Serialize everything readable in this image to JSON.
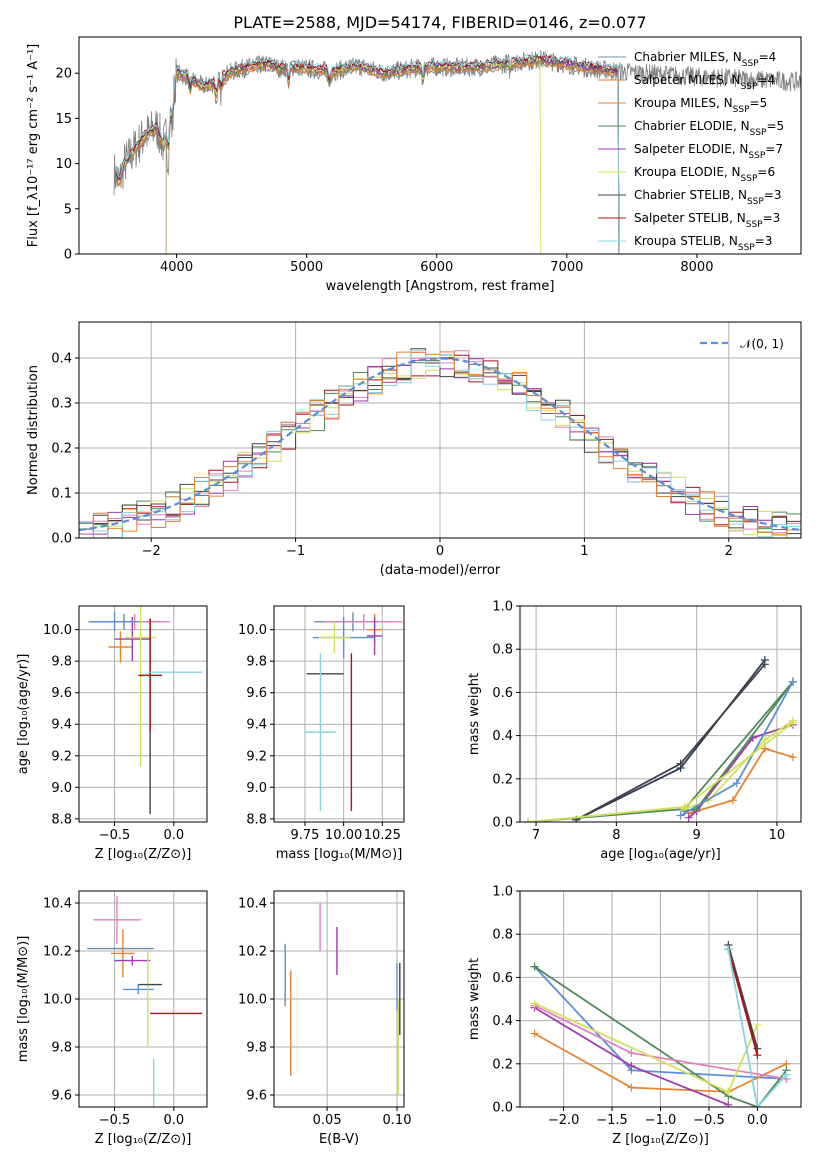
{
  "figure": {
    "title": "PLATE=2588, MJD=54174, FIBERID=0146, z=0.077"
  },
  "colors": {
    "models": [
      "#6b8ca8",
      "#e07b2a",
      "#e8842d",
      "#4f8a5a",
      "#a33ab0",
      "#d4e05a",
      "#444444",
      "#b0121b",
      "#86d4e2"
    ],
    "gray": "#7f7f7f",
    "gauss": "#5b8fd8",
    "grid": "#b0b0b0",
    "series6": [
      "#5b8fd8",
      "#e8842d",
      "#4f8a5a",
      "#a33ab0",
      "#e27fc0",
      "#d4e05a"
    ]
  },
  "chart_data": [
    {
      "id": "spectrum",
      "type": "line",
      "xlabel": "wavelength [Angstrom, rest frame]",
      "ylabel": "Flux [f_λ10⁻¹⁷ erg cm⁻² s⁻¹ A⁻¹]",
      "xlim": [
        3250,
        8800
      ],
      "ylim": [
        0,
        24
      ],
      "xticks": [
        4000,
        5000,
        6000,
        7000,
        8000
      ],
      "yticks": [
        0,
        5,
        10,
        15,
        20
      ],
      "grid": false,
      "legend_position": "right",
      "legend": [
        "Chabrier MILES, N_SSP=4",
        "Salpeter MILES, N_SSP=4",
        "Kroupa MILES, N_SSP=5",
        "Chabrier ELODIE, N_SSP=5",
        "Salpeter ELODIE, N_SSP=7",
        "Kroupa ELODIE, N_SSP=6",
        "Chabrier STELIB, N_SSP=3",
        "Salpeter STELIB, N_SSP=3",
        "Kroupa STELIB, N_SSP=3"
      ],
      "data_x": [
        3520,
        3560,
        3600,
        3650,
        3700,
        3750,
        3800,
        3850,
        3900,
        3950,
        4000,
        4100,
        4200,
        4300,
        4400,
        4500,
        4600,
        4700,
        4800,
        4900,
        5000,
        5200,
        5400,
        5600,
        5800,
        6000,
        6200,
        6400,
        6600,
        6800,
        7000,
        7200,
        7400,
        7600,
        7800,
        8000,
        8200,
        8400,
        8600,
        8800
      ],
      "data_y": [
        9,
        8,
        10,
        11,
        12,
        13,
        13.5,
        14,
        12,
        15,
        20,
        19.5,
        18.5,
        19,
        20,
        20.5,
        20.8,
        21,
        20.5,
        20.7,
        20.5,
        20.2,
        20.8,
        20,
        20.5,
        20.7,
        20.6,
        20.8,
        21.2,
        21.5,
        21,
        20.5,
        20.2,
        20,
        19.8,
        19.6,
        19.5,
        19.3,
        19.2,
        19
      ]
    },
    {
      "id": "residuals",
      "type": "histogram",
      "xlabel": "(data-model)/error",
      "ylabel": "Normed distribution",
      "xlim": [
        -2.5,
        2.5
      ],
      "ylim": [
        0,
        0.48
      ],
      "xticks": [
        -2,
        -1,
        0,
        1,
        2
      ],
      "yticks": [
        0.0,
        0.1,
        0.2,
        0.3,
        0.4
      ],
      "grid": true,
      "legend_position": "top-right",
      "legend": [
        "𝒩(0, 1)"
      ]
    },
    {
      "id": "age_vs_Z",
      "type": "errorbar",
      "xlabel": "Z [log₁₀(Z/Z⊙)]",
      "ylabel": "age  [log₁₀(age/yr)]",
      "xlim": [
        -0.8,
        0.28
      ],
      "ylim": [
        8.78,
        10.15
      ],
      "xticks": [
        -0.5,
        0.0
      ],
      "yticks": [
        8.8,
        9.0,
        9.2,
        9.4,
        9.6,
        9.8,
        10.0
      ],
      "points": [
        {
          "x": -0.42,
          "xerr": 0.3,
          "y": 10.05,
          "yerr": 0.05
        },
        {
          "x": -0.45,
          "xerr": 0.1,
          "y": 9.89,
          "yerr": 0.1
        },
        {
          "x": -0.33,
          "xerr": 0.3,
          "y": 10.05,
          "yerr": 0.05
        },
        {
          "x": -0.35,
          "xerr": 0.15,
          "y": 9.94,
          "yerr": 0.14
        },
        {
          "x": -0.5,
          "xerr": 0.22,
          "y": 10.05,
          "yerr": 0.06
        },
        {
          "x": -0.28,
          "xerr": 0.13,
          "y": 9.95,
          "yerr": 0.82
        },
        {
          "x": -0.2,
          "xerr": 0.0,
          "y": 9.45,
          "yerr": 0.62
        },
        {
          "x": -0.2,
          "xerr": 0.1,
          "y": 9.71,
          "yerr": 0.36
        },
        {
          "x": 0.02,
          "xerr": 0.22,
          "y": 9.73,
          "yerr": 0.0
        }
      ]
    },
    {
      "id": "age_vs_mass",
      "type": "errorbar",
      "xlabel": "mass [log₁₀(M/M⊙)]",
      "ylabel": "",
      "xlim": [
        9.55,
        10.39
      ],
      "ylim": [
        8.78,
        10.15
      ],
      "xticks": [
        9.75,
        10.0,
        10.25
      ],
      "yticks": [
        8.8,
        9.0,
        9.2,
        9.4,
        9.6,
        9.8,
        10.0
      ],
      "points": [
        {
          "x": 10.06,
          "xerr": 0.25,
          "y": 10.05,
          "yerr": 0.06
        },
        {
          "x": 10.2,
          "xerr": 0.05,
          "y": 10.0,
          "yerr": 0.1
        },
        {
          "x": 10.13,
          "xerr": 0.25,
          "y": 10.05,
          "yerr": 0.05
        },
        {
          "x": 10.2,
          "xerr": 0.05,
          "y": 9.96,
          "yerr": 0.12
        },
        {
          "x": 10.0,
          "xerr": 0.2,
          "y": 9.95,
          "yerr": 0.13
        },
        {
          "x": 9.94,
          "xerr": 0.1,
          "y": 9.95,
          "yerr": 0.1
        },
        {
          "x": 9.88,
          "xerr": 0.12,
          "y": 9.72,
          "yerr": 0.0
        },
        {
          "x": 10.05,
          "xerr": 0.0,
          "y": 9.35,
          "yerr": 0.5
        },
        {
          "x": 9.85,
          "xerr": 0.1,
          "y": 9.35,
          "yerr": 0.5
        }
      ]
    },
    {
      "id": "mass_weight_vs_age",
      "type": "line",
      "xlabel": "age  [log₁₀(age/yr)]",
      "ylabel": "mass weight",
      "xlim": [
        6.8,
        10.3
      ],
      "ylim": [
        0.0,
        1.0
      ],
      "xticks": [
        7,
        8,
        9,
        10
      ],
      "yticks": [
        0.0,
        0.2,
        0.4,
        0.6,
        0.8,
        1.0
      ],
      "grid": true,
      "series": [
        {
          "x": [
            7.5,
            8.8,
            9.85
          ],
          "y": [
            0.01,
            0.25,
            0.75
          ]
        },
        {
          "x": [
            7.5,
            8.8,
            9.85
          ],
          "y": [
            0.01,
            0.27,
            0.73
          ]
        },
        {
          "x": [
            8.9,
            9.45,
            9.85,
            10.2
          ],
          "y": [
            0.04,
            0.1,
            0.34,
            0.3
          ]
        },
        {
          "x": [
            6.9,
            8.85,
            10.2
          ],
          "y": [
            0.0,
            0.06,
            0.65
          ]
        },
        {
          "x": [
            8.9,
            9.0,
            9.7,
            10.2
          ],
          "y": [
            0.02,
            0.05,
            0.39,
            0.45
          ]
        },
        {
          "x": [
            8.85,
            9.15,
            9.85,
            10.2
          ],
          "y": [
            0.06,
            0.1,
            0.38,
            0.47
          ]
        },
        {
          "x": [
            8.85,
            9.0,
            10.2
          ],
          "y": [
            0.05,
            0.06,
            0.65
          ]
        },
        {
          "x": [
            8.8,
            9.5,
            10.2
          ],
          "y": [
            0.03,
            0.18,
            0.65
          ]
        },
        {
          "x": [
            6.9,
            8.85,
            10.2
          ],
          "y": [
            0.0,
            0.07,
            0.46
          ]
        }
      ]
    },
    {
      "id": "mass_vs_Z",
      "type": "errorbar",
      "xlabel": "Z [log₁₀(Z/Z⊙)]",
      "ylabel": "mass [log₁₀(M/M⊙)]",
      "xlim": [
        -0.8,
        0.28
      ],
      "ylim": [
        9.55,
        10.45
      ],
      "xticks": [
        -0.5,
        0.0
      ],
      "yticks": [
        9.6,
        9.8,
        10.0,
        10.2,
        10.4
      ],
      "points": [
        {
          "x": -0.45,
          "xerr": 0.28,
          "y": 10.21,
          "yerr": 0.0
        },
        {
          "x": -0.43,
          "xerr": 0.1,
          "y": 10.19,
          "yerr": 0.1
        },
        {
          "x": -0.48,
          "xerr": 0.2,
          "y": 10.33,
          "yerr": 0.1
        },
        {
          "x": -0.35,
          "xerr": 0.15,
          "y": 10.16,
          "yerr": 0.02
        },
        {
          "x": -0.3,
          "xerr": 0.13,
          "y": 10.04,
          "yerr": 0.02
        },
        {
          "x": -0.22,
          "xerr": 0.0,
          "y": 10.0,
          "yerr": 0.2
        },
        {
          "x": -0.2,
          "xerr": 0.1,
          "y": 10.06,
          "yerr": 0.0
        },
        {
          "x": 0.02,
          "xerr": 0.22,
          "y": 9.94,
          "yerr": 0.0
        },
        {
          "x": -0.17,
          "xerr": 0.0,
          "y": 9.6,
          "yerr": 0.15
        }
      ]
    },
    {
      "id": "mass_vs_EBV",
      "type": "errorbar",
      "xlabel": "E(B-V)",
      "ylabel": "",
      "xlim": [
        0.012,
        0.105
      ],
      "ylim": [
        9.55,
        10.45
      ],
      "xticks": [
        0.05,
        0.1
      ],
      "yticks": [
        9.6,
        9.8,
        10.0,
        10.2,
        10.4
      ],
      "points": [
        {
          "x": 0.02,
          "y": 10.1,
          "yerr": 0.13
        },
        {
          "x": 0.024,
          "y": 9.9,
          "yerr": 0.22
        },
        {
          "x": 0.045,
          "y": 10.3,
          "yerr": 0.1
        },
        {
          "x": 0.057,
          "y": 10.2,
          "yerr": 0.1
        },
        {
          "x": 0.1,
          "y": 10.05,
          "yerr": 0.1
        },
        {
          "x": 0.101,
          "y": 9.8,
          "yerr": 0.2
        },
        {
          "x": 0.102,
          "y": 10.0,
          "yerr": 0.15
        }
      ]
    },
    {
      "id": "mass_weight_vs_Z",
      "type": "line",
      "xlabel": "Z [log₁₀(Z/Z⊙)]",
      "ylabel": "mass weight",
      "xlim": [
        -2.45,
        0.45
      ],
      "ylim": [
        0.0,
        1.0
      ],
      "xticks": [
        -2.0,
        -1.5,
        -1.0,
        -0.5,
        0.0
      ],
      "yticks": [
        0.0,
        0.2,
        0.4,
        0.6,
        0.8,
        1.0
      ],
      "grid": true,
      "series": [
        {
          "x": [
            -2.3,
            -1.3,
            0.3
          ],
          "y": [
            0.65,
            0.17,
            0.13
          ]
        },
        {
          "x": [
            -2.3,
            -1.3,
            -0.3,
            0.3
          ],
          "y": [
            0.34,
            0.09,
            0.07,
            0.2
          ]
        },
        {
          "x": [
            -2.3,
            -0.3,
            0.0,
            0.3
          ],
          "y": [
            0.65,
            0.05,
            0.0,
            0.17
          ]
        },
        {
          "x": [
            -2.3,
            -1.3,
            -0.3
          ],
          "y": [
            0.46,
            0.19,
            0.01
          ]
        },
        {
          "x": [
            -2.3,
            -1.3,
            0.3
          ],
          "y": [
            0.47,
            0.25,
            0.13
          ]
        },
        {
          "x": [
            -2.3,
            -0.3,
            0.0
          ],
          "y": [
            0.48,
            0.07,
            0.38
          ]
        },
        {
          "x": [
            -0.3,
            0.0
          ],
          "y": [
            0.75,
            0.27
          ]
        },
        {
          "x": [
            -0.3,
            0.0
          ],
          "y": [
            0.73,
            0.24
          ]
        },
        {
          "x": [
            -0.3,
            0.0,
            0.3
          ],
          "y": [
            0.73,
            0.0,
            0.15
          ]
        }
      ]
    }
  ]
}
